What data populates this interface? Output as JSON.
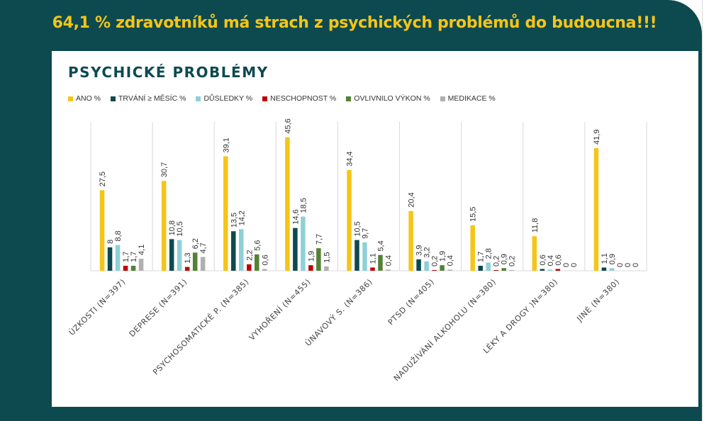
{
  "headline": "64,1 % zdravotníků má strach z psychických problémů do budoucna!!!",
  "chart_data": {
    "type": "bar",
    "title": "PSYCHICKÉ PROBLÉMY",
    "categories": [
      "ÚZKOSTI (N=397)",
      "DEPRESE (N=391)",
      "PSYCHOSOMATICKÉ P. (N=385)",
      "VYHOŘENÍ (N=455)",
      "ÚNAVOVÝ S. (N=386)",
      "PTSD (N=405)",
      "NADUŽÍVÁNÍ ALKOHOLU (N=380)",
      "LÉKY A DROGY )N=380)",
      "JINÉ (N=380)"
    ],
    "series": [
      {
        "name": "ANO %",
        "color": "#f5c518",
        "values": [
          27.5,
          30.7,
          39.1,
          45.6,
          34.4,
          20.4,
          15.5,
          11.8,
          41.9
        ],
        "labels": [
          "27,5",
          "30,7",
          "39,1",
          "45,6",
          "34,4",
          "20,4",
          "15,5",
          "11,8",
          "41,9"
        ]
      },
      {
        "name": "TRVÁNÍ ≥ MĚSÍC %",
        "color": "#0d4a50",
        "values": [
          8,
          10.8,
          13.5,
          14.6,
          10.5,
          3.9,
          1.7,
          0.6,
          1.1
        ],
        "labels": [
          "8",
          "10,8",
          "13,5",
          "14,6",
          "10,5",
          "3,9",
          "1,7",
          "0,6",
          "1,1"
        ]
      },
      {
        "name": "DŮSLEDKY %",
        "color": "#8fd0d8",
        "values": [
          8.8,
          10.5,
          14.2,
          18.5,
          9.7,
          3.2,
          2.8,
          0.4,
          0.9
        ],
        "labels": [
          "8,8",
          "10,5",
          "14,2",
          "18,5",
          "9,7",
          "3,2",
          "2,8",
          "0,4",
          "0,9"
        ]
      },
      {
        "name": "NESCHOPNOST %",
        "color": "#c00000",
        "values": [
          1.7,
          1.3,
          2.2,
          1.9,
          1.1,
          0.2,
          0.2,
          0.6,
          0
        ],
        "labels": [
          "1,7",
          "1,3",
          "2,2",
          "1,9",
          "1,1",
          "0,2",
          "0,2",
          "0,6",
          "0"
        ]
      },
      {
        "name": "OVLIVNILO VÝKON %",
        "color": "#538135",
        "values": [
          1.7,
          6.2,
          5.6,
          7.7,
          5.4,
          1.9,
          0.9,
          0,
          0
        ],
        "labels": [
          "1,7",
          "6,2",
          "5,6",
          "7,7",
          "5,4",
          "1,9",
          "0,9",
          "0",
          "0"
        ]
      },
      {
        "name": "MEDIKACE %",
        "color": "#b0b0b0",
        "values": [
          4.1,
          4.7,
          0.6,
          1.5,
          0.4,
          0.4,
          0.2,
          0,
          0
        ],
        "labels": [
          "4,1",
          "4,7",
          "0,6",
          "1,5",
          "0,4",
          "0,4",
          "0,2",
          "0",
          "0"
        ]
      }
    ],
    "ylim": [
      0,
      50
    ],
    "grid": false,
    "legend_position": "top-left"
  }
}
